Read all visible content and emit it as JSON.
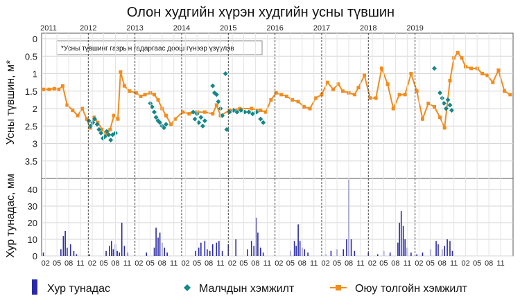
{
  "chart_data": {
    "type": "line",
    "title": "Олон худгийн хүрэн худгийн усны түвшин",
    "note": "*Усны түвшинг газрын гадаргаас доош гүнээр үзүүлэв",
    "years": [
      "2011",
      "2012",
      "2013",
      "2014",
      "2015",
      "2016",
      "2017",
      "2018",
      "2019"
    ],
    "month_ticks": [
      "02",
      "05",
      "08",
      "11"
    ],
    "top_panel": {
      "ylabel": "Усны түвшин, м*",
      "ylim": [
        0,
        4
      ],
      "inverted": true,
      "yticks": [
        "0",
        "0.5",
        "1",
        "1.5",
        "2",
        "2.5",
        "3",
        "3.5"
      ],
      "series": [
        {
          "name": "Малчдын хэмжилт",
          "color": "#13878a",
          "marker": "diamond",
          "points": [
            [
              "2012-01-05",
              2.35
            ],
            [
              "2012-01-20",
              2.5
            ],
            [
              "2012-02-05",
              2.4
            ],
            [
              "2012-02-20",
              2.3
            ],
            [
              "2012-03-10",
              2.45
            ],
            [
              "2012-03-25",
              2.6
            ],
            [
              "2012-04-10",
              2.7
            ],
            [
              "2012-04-25",
              2.85
            ],
            [
              "2012-05-10",
              2.8
            ],
            [
              "2012-05-25",
              2.65
            ],
            [
              "2012-06-10",
              2.75
            ],
            [
              "2012-06-25",
              2.9
            ],
            [
              "2012-07-10",
              2.75
            ],
            [
              "2012-08-01",
              2.7
            ],
            [
              "2013-05-01",
              1.85
            ],
            [
              "2013-05-15",
              1.95
            ],
            [
              "2013-06-01",
              2.1
            ],
            [
              "2013-06-15",
              2.25
            ],
            [
              "2013-07-01",
              2.35
            ],
            [
              "2013-07-15",
              2.4
            ],
            [
              "2013-08-01",
              2.5
            ],
            [
              "2013-08-15",
              2.55
            ],
            [
              "2013-09-01",
              2.45
            ],
            [
              "2014-04-01",
              2.1
            ],
            [
              "2014-04-15",
              2.3
            ],
            [
              "2014-05-01",
              2.15
            ],
            [
              "2014-05-15",
              2.4
            ],
            [
              "2014-06-01",
              2.25
            ],
            [
              "2014-06-15",
              2.5
            ],
            [
              "2014-07-01",
              2.35
            ],
            [
              "2014-09-01",
              1.35
            ],
            [
              "2014-09-15",
              1.55
            ],
            [
              "2014-10-01",
              1.6
            ],
            [
              "2014-10-15",
              1.8
            ],
            [
              "2014-11-01",
              2.0
            ],
            [
              "2014-11-15",
              2.2
            ],
            [
              "2014-12-10",
              1.0
            ],
            [
              "2014-12-20",
              2.6
            ],
            [
              "2015-01-10",
              2.1
            ],
            [
              "2015-02-10",
              2.05
            ],
            [
              "2015-03-10",
              2.1
            ],
            [
              "2015-04-10",
              2.05
            ],
            [
              "2015-05-10",
              2.1
            ],
            [
              "2015-06-10",
              2.1
            ],
            [
              "2015-07-10",
              2.15
            ],
            [
              "2015-08-10",
              2.1
            ],
            [
              "2015-09-10",
              2.3
            ],
            [
              "2015-10-01",
              2.4
            ],
            [
              "2019-07-15",
              1.55
            ],
            [
              "2019-08-01",
              1.7
            ],
            [
              "2019-08-15",
              1.85
            ],
            [
              "2019-09-01",
              2.0
            ],
            [
              "2019-09-15",
              1.75
            ],
            [
              "2019-10-01",
              1.9
            ],
            [
              "2019-10-15",
              2.05
            ],
            [
              "2019-06-01",
              0.85
            ]
          ]
        },
        {
          "name": "Оюу толгойн хэмжилт",
          "color": "#f28c1c",
          "marker": "square",
          "points": [
            [
              "2011-01-20",
              1.45
            ],
            [
              "2011-03-01",
              1.45
            ],
            [
              "2011-04-10",
              1.43
            ],
            [
              "2011-05-15",
              1.45
            ],
            [
              "2011-06-15",
              1.35
            ],
            [
              "2011-07-20",
              1.9
            ],
            [
              "2011-09-01",
              2.05
            ],
            [
              "2011-10-10",
              2.2
            ],
            [
              "2011-11-15",
              2.0
            ],
            [
              "2011-12-20",
              2.3
            ],
            [
              "2012-01-15",
              2.55
            ],
            [
              "2012-02-15",
              2.25
            ],
            [
              "2012-03-15",
              2.4
            ],
            [
              "2012-04-20",
              2.6
            ],
            [
              "2012-05-20",
              2.75
            ],
            [
              "2012-06-20",
              2.6
            ],
            [
              "2012-07-20",
              2.2
            ],
            [
              "2012-08-20",
              2.3
            ],
            [
              "2012-09-10",
              0.95
            ],
            [
              "2012-10-10",
              1.35
            ],
            [
              "2012-11-20",
              1.5
            ],
            [
              "2013-01-10",
              1.55
            ],
            [
              "2013-02-15",
              1.65
            ],
            [
              "2013-03-20",
              1.6
            ],
            [
              "2013-05-01",
              1.55
            ],
            [
              "2013-06-01",
              1.6
            ],
            [
              "2013-07-01",
              1.75
            ],
            [
              "2013-08-01",
              2.0
            ],
            [
              "2013-09-01",
              2.2
            ],
            [
              "2013-10-10",
              2.45
            ],
            [
              "2013-11-10",
              2.3
            ],
            [
              "2014-01-10",
              2.1
            ],
            [
              "2014-03-01",
              2.15
            ],
            [
              "2014-05-01",
              2.1
            ],
            [
              "2014-07-01",
              2.1
            ],
            [
              "2014-09-01",
              2.15
            ],
            [
              "2014-10-01",
              1.9
            ],
            [
              "2014-11-01",
              2.2
            ],
            [
              "2015-01-10",
              2.05
            ],
            [
              "2015-04-01",
              2.0
            ],
            [
              "2015-07-01",
              2.0
            ],
            [
              "2015-09-10",
              2.05
            ],
            [
              "2015-10-20",
              2.1
            ],
            [
              "2015-12-01",
              1.75
            ],
            [
              "2016-01-10",
              1.55
            ],
            [
              "2016-02-20",
              1.6
            ],
            [
              "2016-04-01",
              1.65
            ],
            [
              "2016-05-15",
              1.75
            ],
            [
              "2016-07-01",
              1.8
            ],
            [
              "2016-08-15",
              1.95
            ],
            [
              "2016-10-01",
              2.0
            ],
            [
              "2016-11-15",
              1.7
            ],
            [
              "2017-01-01",
              1.6
            ],
            [
              "2017-02-15",
              1.25
            ],
            [
              "2017-04-01",
              1.45
            ],
            [
              "2017-05-10",
              1.3
            ],
            [
              "2017-06-15",
              1.5
            ],
            [
              "2017-08-01",
              1.55
            ],
            [
              "2017-09-15",
              1.6
            ],
            [
              "2017-10-15",
              1.4
            ],
            [
              "2017-12-01",
              1.05
            ],
            [
              "2018-01-15",
              1.7
            ],
            [
              "2018-03-01",
              1.7
            ],
            [
              "2018-04-15",
              0.85
            ],
            [
              "2018-06-01",
              1.3
            ],
            [
              "2018-07-15",
              2.0
            ],
            [
              "2018-09-01",
              1.6
            ],
            [
              "2018-10-15",
              1.6
            ],
            [
              "2018-12-01",
              1.0
            ],
            [
              "2019-01-15",
              1.5
            ],
            [
              "2019-03-01",
              2.3
            ],
            [
              "2019-04-15",
              1.85
            ],
            [
              "2019-06-01",
              1.95
            ],
            [
              "2019-07-15",
              2.25
            ],
            [
              "2019-08-20",
              2.55
            ],
            [
              "2019-10-01",
              1.2
            ],
            [
              "2019-11-01",
              0.55
            ],
            [
              "2019-12-01",
              0.4
            ],
            [
              "2020-01-01",
              0.55
            ],
            [
              "2020-02-01",
              0.8
            ],
            [
              "2020-03-15",
              0.85
            ],
            [
              "2020-05-01",
              0.85
            ],
            [
              "2020-06-10",
              1.0
            ],
            [
              "2020-07-20",
              1.05
            ],
            [
              "2020-09-01",
              1.25
            ],
            [
              "2020-10-15",
              0.9
            ],
            [
              "2020-12-01",
              1.5
            ],
            [
              "2021-01-15",
              1.6
            ],
            [
              "2021-03-01",
              1.7
            ],
            [
              "2021-04-15",
              1.85
            ],
            [
              "2021-06-01",
              1.2
            ],
            [
              "2021-07-15",
              1.8
            ],
            [
              "2021-08-20",
              1.15
            ],
            [
              "2021-10-01",
              1.05
            ]
          ]
        }
      ]
    },
    "bottom_panel": {
      "ylabel": "Хур тунадас, мм",
      "ylim": [
        0,
        45
      ],
      "yticks": [
        "40",
        "30",
        "20",
        "10",
        "0"
      ],
      "series": [
        {
          "name": "Хур тунадас",
          "color": "#2a2aa6",
          "type": "bar",
          "points": [
            [
              "2011-01-15",
              2
            ],
            [
              "2011-06-01",
              4
            ],
            [
              "2011-06-20",
              12
            ],
            [
              "2011-07-05",
              15
            ],
            [
              "2011-07-20",
              5
            ],
            [
              "2011-08-15",
              7
            ],
            [
              "2011-09-10",
              3
            ],
            [
              "2011-10-01",
              1
            ],
            [
              "2012-01-10",
              1
            ],
            [
              "2012-05-20",
              3
            ],
            [
              "2012-06-15",
              6
            ],
            [
              "2012-07-01",
              9
            ],
            [
              "2012-07-15",
              4
            ],
            [
              "2012-08-01",
              7
            ],
            [
              "2012-08-15",
              3
            ],
            [
              "2012-09-01",
              2
            ],
            [
              "2012-09-20",
              20
            ],
            [
              "2012-10-10",
              6
            ],
            [
              "2012-11-05",
              2
            ],
            [
              "2013-04-01",
              2
            ],
            [
              "2013-06-01",
              5
            ],
            [
              "2013-06-15",
              17
            ],
            [
              "2013-07-01",
              11
            ],
            [
              "2013-07-15",
              14
            ],
            [
              "2013-08-01",
              8
            ],
            [
              "2013-08-20",
              5
            ],
            [
              "2013-09-10",
              2
            ],
            [
              "2014-04-20",
              3
            ],
            [
              "2014-05-15",
              5
            ],
            [
              "2014-06-01",
              8
            ],
            [
              "2014-07-01",
              9
            ],
            [
              "2014-07-20",
              4
            ],
            [
              "2014-08-10",
              3
            ],
            [
              "2014-09-01",
              7
            ],
            [
              "2014-10-01",
              8
            ],
            [
              "2014-10-20",
              9
            ],
            [
              "2014-11-15",
              3
            ],
            [
              "2015-01-01",
              7
            ],
            [
              "2015-03-01",
              10
            ],
            [
              "2015-06-01",
              4
            ],
            [
              "2015-07-01",
              9
            ],
            [
              "2015-07-20",
              6
            ],
            [
              "2015-08-05",
              23
            ],
            [
              "2015-08-20",
              14
            ],
            [
              "2015-09-10",
              5
            ],
            [
              "2015-10-01",
              2
            ],
            [
              "2016-05-01",
              3
            ],
            [
              "2016-06-01",
              9
            ],
            [
              "2016-06-15",
              6
            ],
            [
              "2016-07-01",
              19
            ],
            [
              "2016-07-15",
              9
            ],
            [
              "2016-08-01",
              5
            ],
            [
              "2016-08-20",
              4
            ],
            [
              "2016-09-15",
              2
            ],
            [
              "2017-02-01",
              1
            ],
            [
              "2017-03-15",
              3
            ],
            [
              "2017-05-01",
              4
            ],
            [
              "2017-06-20",
              4
            ],
            [
              "2017-07-15",
              10
            ],
            [
              "2017-08-01",
              46
            ],
            [
              "2017-08-20",
              10
            ],
            [
              "2017-09-15",
              3
            ],
            [
              "2018-01-01",
              2
            ],
            [
              "2018-03-15",
              1
            ],
            [
              "2018-05-01",
              3
            ],
            [
              "2018-06-20",
              2
            ],
            [
              "2018-08-20",
              8
            ],
            [
              "2018-09-01",
              20
            ],
            [
              "2018-09-15",
              27
            ],
            [
              "2018-10-01",
              18
            ],
            [
              "2018-10-15",
              10
            ],
            [
              "2018-11-01",
              5
            ],
            [
              "2018-12-01",
              2
            ],
            [
              "2019-01-15",
              1
            ],
            [
              "2019-03-01",
              2
            ],
            [
              "2019-05-01",
              4
            ],
            [
              "2019-06-15",
              9
            ],
            [
              "2019-07-01",
              7
            ],
            [
              "2019-08-01",
              4
            ],
            [
              "2019-08-20",
              6
            ],
            [
              "2019-09-10",
              10
            ],
            [
              "2019-10-01",
              9
            ],
            [
              "2019-10-20",
              3
            ]
          ]
        }
      ]
    },
    "legend": {
      "placement": "bottom",
      "items": [
        "Хур тунадас",
        "Малчдын хэмжилт",
        "Оюу толгойн хэмжилт"
      ]
    },
    "grid": true
  }
}
